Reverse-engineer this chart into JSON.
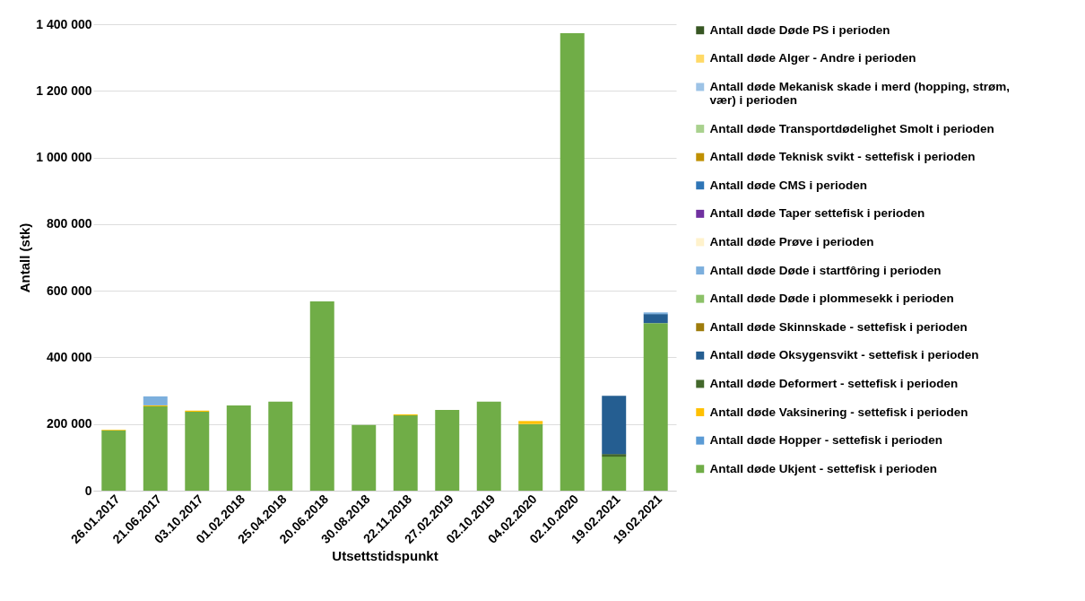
{
  "chart_data": {
    "type": "bar",
    "stacked": true,
    "xlabel": "Utsettstidspunkt",
    "ylabel": "Antall (stk)",
    "ylim": [
      0,
      1400000
    ],
    "yticks": [
      0,
      200000,
      400000,
      600000,
      800000,
      1000000,
      1200000,
      1400000
    ],
    "grid": "y",
    "legend": "right",
    "categories": [
      "26.01.2017",
      "21.06.2017",
      "03.10.2017",
      "01.02.2018",
      "25.04.2018",
      "20.06.2018",
      "30.08.2018",
      "22.11.2018",
      "27.02.2019",
      "02.10.2019",
      "04.02.2020",
      "02.10.2020",
      "19.02.2021",
      "19.02.2021"
    ],
    "series": [
      {
        "name": "Antall døde Ukjent - settefisk i perioden",
        "color": "#70ad47",
        "values": [
          181000,
          253000,
          237000,
          256000,
          267000,
          568000,
          197000,
          226000,
          242000,
          267000,
          200000,
          1373000,
          102000,
          503000
        ]
      },
      {
        "name": "Antall døde Hopper - settefisk i perioden",
        "color": "#5b9bd5",
        "values": [
          null,
          null,
          null,
          null,
          null,
          null,
          null,
          null,
          null,
          null,
          null,
          null,
          null,
          null
        ]
      },
      {
        "name": "Antall døde Vaksinering - settefisk i perioden",
        "color": "#ffc000",
        "values": [
          2000,
          3000,
          3000,
          null,
          null,
          null,
          null,
          3000,
          null,
          null,
          9000,
          null,
          null,
          null
        ]
      },
      {
        "name": "Antall døde Deformert - settefisk i perioden",
        "color": "#43682b",
        "values": [
          null,
          null,
          null,
          null,
          null,
          null,
          null,
          null,
          null,
          null,
          null,
          null,
          8000,
          null
        ]
      },
      {
        "name": "Antall døde Oksygensvikt - settefisk i perioden",
        "color": "#255e91",
        "values": [
          null,
          null,
          null,
          null,
          null,
          null,
          null,
          null,
          null,
          null,
          null,
          null,
          175000,
          27000
        ]
      },
      {
        "name": "Antall døde Skinnskade - settefisk i perioden",
        "color": "#9e7c0c",
        "values": [
          null,
          null,
          null,
          null,
          null,
          null,
          null,
          null,
          null,
          null,
          null,
          null,
          null,
          null
        ]
      },
      {
        "name": "Antall døde Døde i plommesekk i perioden",
        "color": "#8cc168",
        "values": [
          null,
          null,
          null,
          null,
          null,
          null,
          null,
          null,
          null,
          null,
          null,
          null,
          null,
          null
        ]
      },
      {
        "name": "Antall døde Døde i startfôring i perioden",
        "color": "#7cafdd",
        "values": [
          null,
          27000,
          null,
          null,
          null,
          null,
          null,
          null,
          null,
          null,
          null,
          null,
          null,
          5000
        ]
      },
      {
        "name": "Antall døde Prøve  i perioden",
        "color": "#fff2cc",
        "values": [
          null,
          null,
          null,
          null,
          null,
          null,
          null,
          null,
          null,
          null,
          null,
          null,
          null,
          null
        ]
      },
      {
        "name": "Antall døde Taper settefisk i perioden",
        "color": "#7030a0",
        "values": [
          null,
          null,
          null,
          null,
          null,
          null,
          null,
          null,
          null,
          null,
          null,
          null,
          null,
          null
        ]
      },
      {
        "name": "Antall døde CMS i perioden",
        "color": "#2e75b6",
        "values": [
          null,
          null,
          null,
          null,
          null,
          null,
          null,
          null,
          null,
          null,
          null,
          null,
          null,
          null
        ]
      },
      {
        "name": "Antall døde Teknisk svikt - settefisk i perioden",
        "color": "#bf9000",
        "values": [
          null,
          null,
          null,
          null,
          null,
          null,
          null,
          null,
          null,
          null,
          null,
          null,
          null,
          null
        ]
      },
      {
        "name": "Antall døde Transportdødelighet Smolt i perioden",
        "color": "#a9d18e",
        "values": [
          null,
          null,
          null,
          null,
          null,
          null,
          null,
          null,
          null,
          null,
          null,
          null,
          null,
          null
        ]
      },
      {
        "name": "Antall døde Mekanisk skade i merd (hopping, strøm, vær) i perioden",
        "color": "#9dc3e6",
        "values": [
          null,
          null,
          null,
          null,
          null,
          null,
          null,
          null,
          null,
          null,
          null,
          null,
          null,
          null
        ]
      },
      {
        "name": "Antall døde Alger - Andre i perioden",
        "color": "#ffd966",
        "values": [
          null,
          null,
          null,
          null,
          null,
          null,
          null,
          null,
          null,
          null,
          null,
          null,
          null,
          null
        ]
      },
      {
        "name": "Antall døde Døde PS i perioden",
        "color": "#375623",
        "values": [
          null,
          null,
          null,
          null,
          null,
          null,
          null,
          null,
          null,
          null,
          null,
          null,
          null,
          null
        ]
      }
    ]
  }
}
